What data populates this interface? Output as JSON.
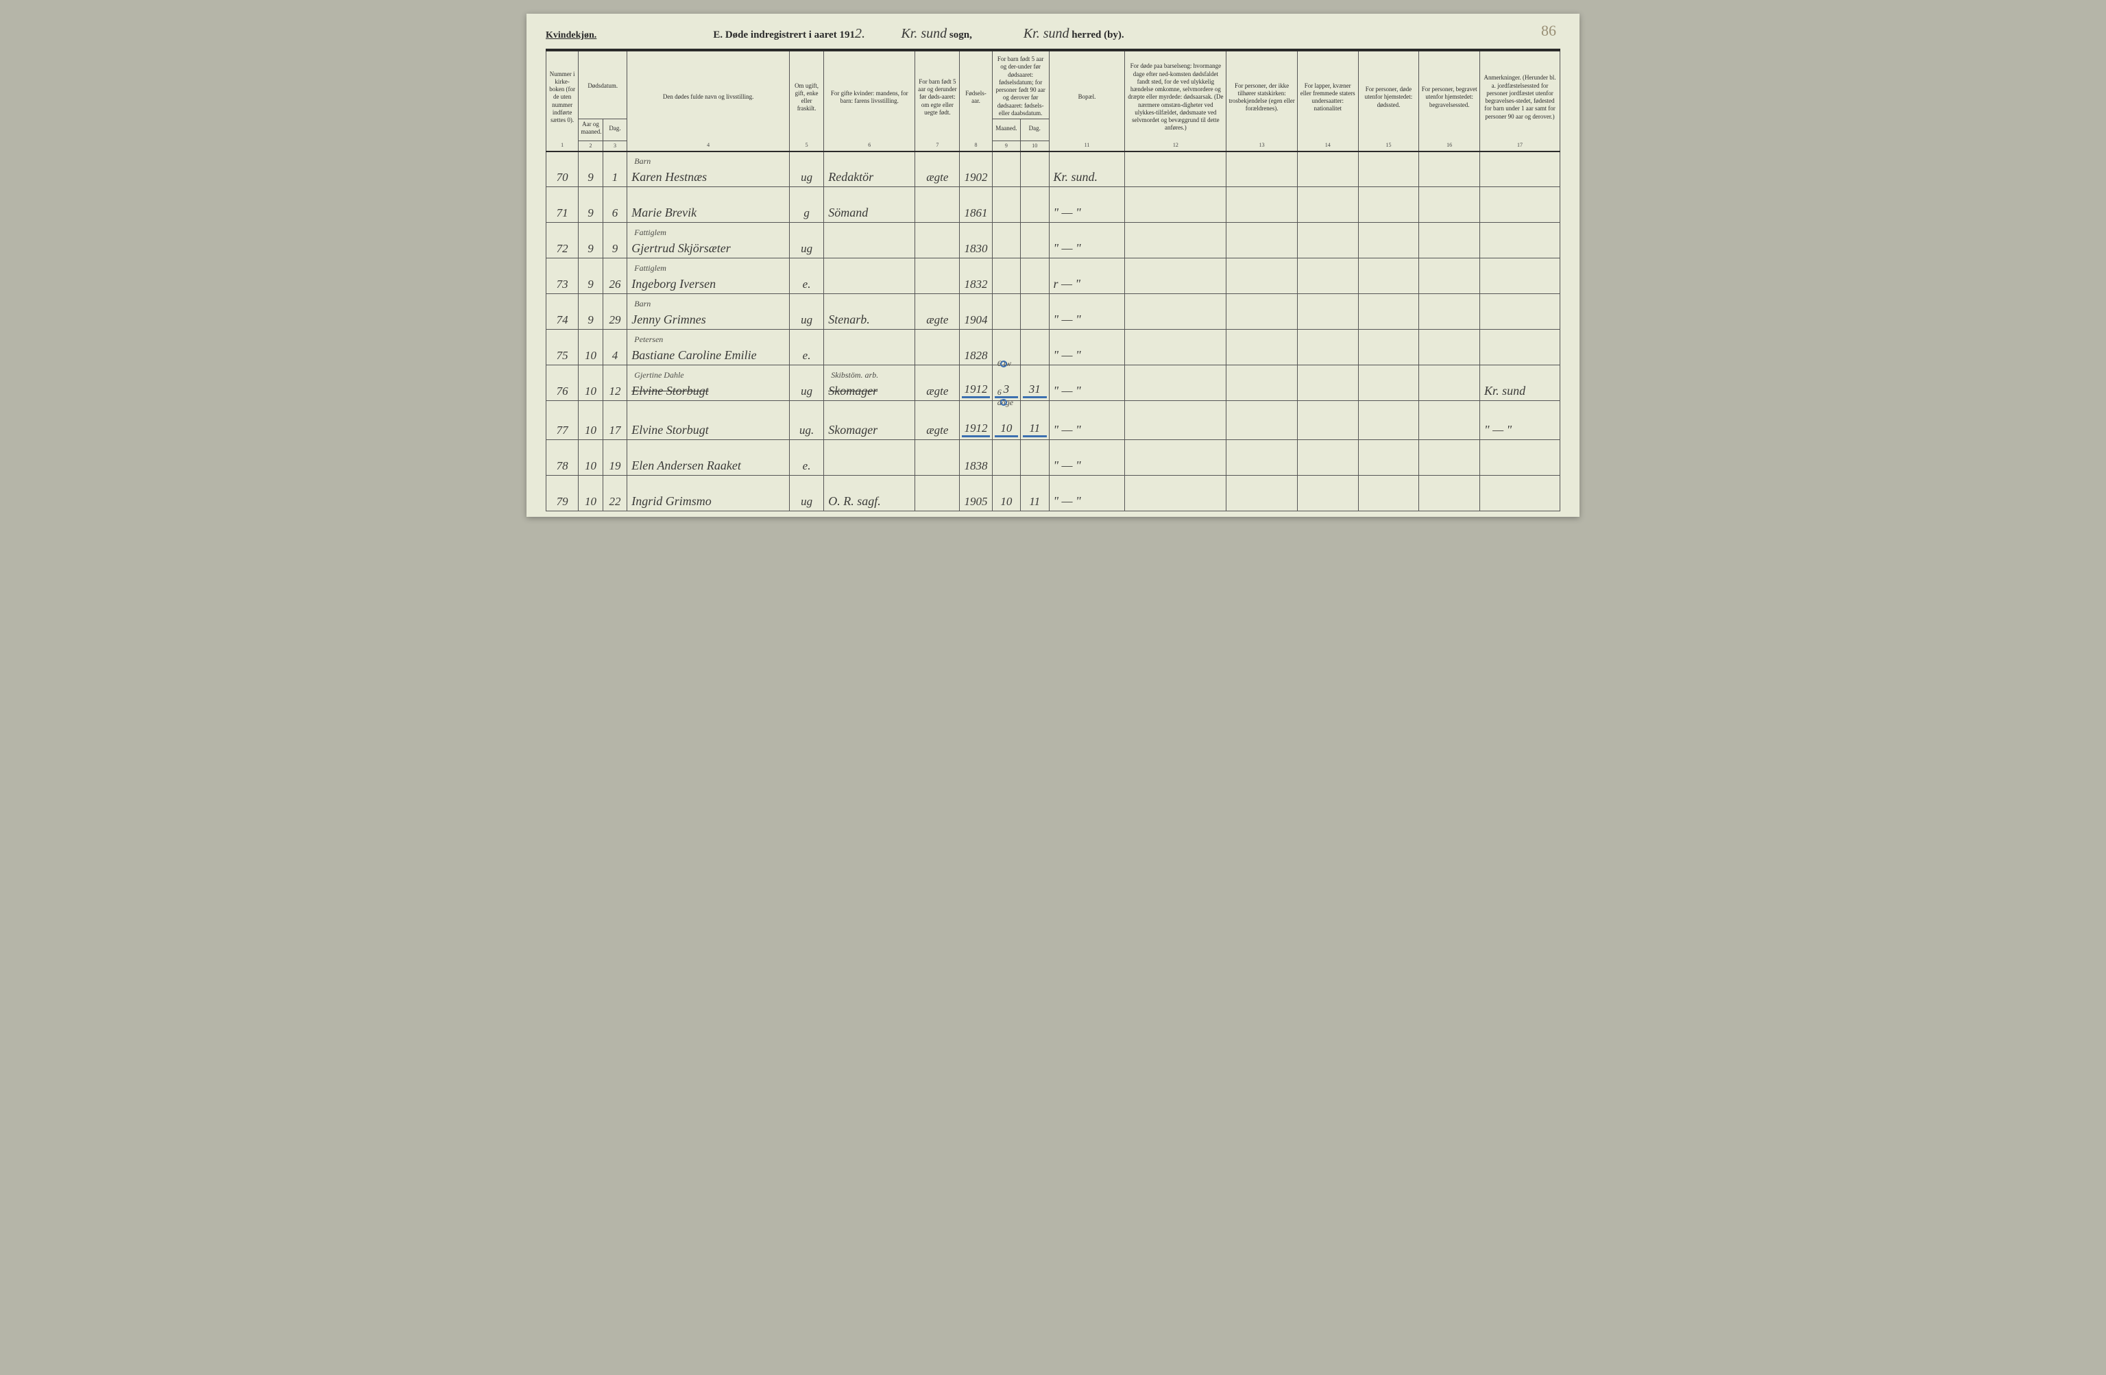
{
  "page_number_handwritten": "86",
  "header": {
    "kvindekjon": "Kvindekjøn.",
    "title_prefix": "E.  Døde indregistrert i aaret 191",
    "year_suffix_hand": "2.",
    "sogn_hand": "Kr. sund",
    "sogn_label": " sogn,",
    "herred_hand": "Kr. sund",
    "herred_label": " herred (by)."
  },
  "columns": {
    "c1": "Nummer i kirke-boken (for de uten nummer indførte sættes 0).",
    "c2_group": "Dødsdatum.",
    "c2": "Aar og maaned.",
    "c3": "Dag.",
    "c4": "Den dødes fulde navn og livsstilling.",
    "c5": "Om ugift, gift, enke eller fraskilt.",
    "c6": "For gifte kvinder: mandens, for barn: farens livsstilling.",
    "c7": "For barn født 5 aar og derunder før døds-aaret: om egte eller uegte født.",
    "c8": "Fødsels-aar.",
    "c9_10_group": "For barn født 5 aar og der-under før dødsaaret: fødselsdatum; for personer født 90 aar og derover før dødsaaret: fødsels- eller daabsdatum.",
    "c9": "Maaned.",
    "c10": "Dag.",
    "c11": "Bopæl.",
    "c12": "For døde paa barselseng: hvormange dage efter ned-komsten dødsfaldet fandt sted, for de ved ulykkelig hændelse omkomne, selvmordere og dræpte eller myrdede: dødsaarsak. (De nærmere omstæn-digheter ved ulykkes-tilfældet, dødsmaate ved selvmordet og bevæggrund til dette anføres.)",
    "c13": "For personer, der ikke tilhører statskirken: trosbekjendelse (egen eller forældrenes).",
    "c14": "For lapper, kvæner eller fremmede staters undersaatter: nationalitet",
    "c15": "For personer, døde utenfor hjemstedet: dødssted.",
    "c16": "For personer, begravet utenfor hjemstedet: begravelsessted.",
    "c17": "Anmerkninger. (Herunder bl. a. jordfæstelsessted for personer jordfæstet utenfor begravelses-stedet, fødested for barn under 1 aar samt for personer 90 aar og derover.)"
  },
  "colnums": [
    "1",
    "2",
    "3",
    "4",
    "5",
    "6",
    "7",
    "8",
    "9",
    "10",
    "11",
    "12",
    "13",
    "14",
    "15",
    "16",
    "17"
  ],
  "rows": [
    {
      "num": "70",
      "mon": "9",
      "day": "1",
      "name_ann": "Barn",
      "name": "Karen Hestnæs",
      "status": "ug",
      "occ": "Redaktör",
      "c7": "ægte",
      "year": "1902",
      "c9": "",
      "c10": "",
      "bopael": "Kr. sund.",
      "c17": ""
    },
    {
      "num": "71",
      "mon": "9",
      "day": "6",
      "name_ann": "",
      "name": "Marie Brevik",
      "status": "g",
      "occ": "Sömand",
      "c7": "",
      "year": "1861",
      "c9": "",
      "c10": "",
      "bopael": "\"   —   \"",
      "c17": ""
    },
    {
      "num": "72",
      "mon": "9",
      "day": "9",
      "name_ann": "Fattiglem",
      "name": "Gjertrud Skjörsæter",
      "status": "ug",
      "occ": "",
      "c7": "",
      "year": "1830",
      "c9": "",
      "c10": "",
      "bopael": "\"   —   \"",
      "c17": ""
    },
    {
      "num": "73",
      "mon": "9",
      "day": "26",
      "name_ann": "Fattiglem",
      "name": "Ingeborg Iversen",
      "status": "e.",
      "occ": "",
      "c7": "",
      "year": "1832",
      "c9": "",
      "c10": "",
      "bopael": "r   —   \"",
      "c17": ""
    },
    {
      "num": "74",
      "mon": "9",
      "day": "29",
      "name_ann": "Barn",
      "name": "Jenny Grimnes",
      "status": "ug",
      "occ": "Stenarb.",
      "c7": "ægte",
      "year": "1904",
      "c9": "",
      "c10": "",
      "bopael": "\"   —   \"",
      "c17": ""
    },
    {
      "num": "75",
      "mon": "10",
      "day": "4",
      "name_ann": "Petersen",
      "name": "Bastiane Caroline Emilie",
      "status": "e.",
      "occ": "",
      "c7": "",
      "year": "1828",
      "c9": "",
      "c10": "",
      "bopael": "\"   —   \"",
      "c17": ""
    },
    {
      "num": "76",
      "mon": "10",
      "day": "12",
      "name_ann": "Gjertine Dahle",
      "name": "Elvine Storbugt",
      "name_struck": true,
      "status": "ug",
      "occ": "Skomager",
      "occ_ann": "Skibstöm. arb.",
      "occ_struck": true,
      "c7": "ægte",
      "year": "1912",
      "c9": "3",
      "c10": "31",
      "c9_ann": "6 tw",
      "blue": true,
      "bopael": "\"   —   \"",
      "c17": "Kr. sund"
    },
    {
      "num": "77",
      "mon": "10",
      "day": "17",
      "name_ann": "",
      "name": "Elvine Storbugt",
      "status": "ug.",
      "occ": "Skomager",
      "c7": "ægte",
      "year": "1912",
      "c9": "10",
      "c10": "11",
      "c9_ann": "6 dage",
      "blue": true,
      "bopael": "\"   —   \"",
      "c17": "\"  —  \""
    },
    {
      "num": "78",
      "mon": "10",
      "day": "19",
      "name_ann": "",
      "name": "Elen Andersen Raaket",
      "status": "e.",
      "occ": "",
      "c7": "",
      "year": "1838",
      "c9": "",
      "c10": "",
      "bopael": "\"   —   \"",
      "c17": ""
    },
    {
      "num": "79",
      "mon": "10",
      "day": "22",
      "name_ann": "",
      "name": "Ingrid Grimsmo",
      "status": "ug",
      "occ": "O. R. sagf.",
      "c7": "",
      "year": "1905",
      "c9": "10",
      "c10": "11",
      "bopael": "\"   —   \"",
      "c17": ""
    }
  ]
}
